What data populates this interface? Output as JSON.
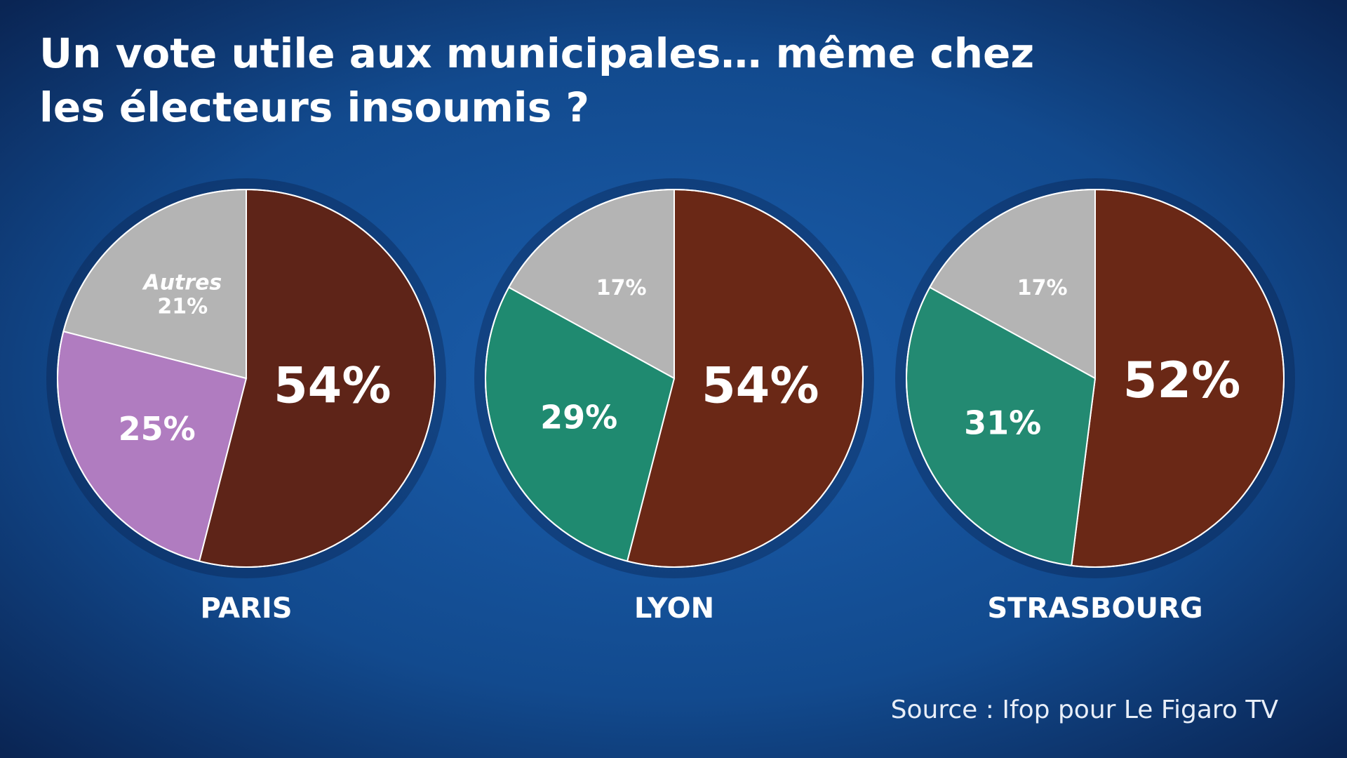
{
  "title": [
    "Un vote utile aux municipales… même chez",
    "les électeurs insoumis ?"
  ],
  "source": "Source : Ifop pour Le Figaro TV",
  "chart_data": [
    {
      "type": "pie",
      "title": "PARIS",
      "categories": [
        null,
        null,
        "Autres"
      ],
      "values": [
        54,
        25,
        21
      ],
      "value_labels": [
        "54%",
        "25%",
        "21%"
      ],
      "colors": [
        "#5e2418",
        "#b07cc0",
        "#b4b4b4"
      ]
    },
    {
      "type": "pie",
      "title": "LYON",
      "categories": [
        null,
        null,
        null
      ],
      "values": [
        54,
        29,
        17
      ],
      "value_labels": [
        "54%",
        "29%",
        "17%"
      ],
      "colors": [
        "#6a2816",
        "#1f8a70",
        "#b4b4b4"
      ]
    },
    {
      "type": "pie",
      "title": "STRASBOURG",
      "categories": [
        null,
        null,
        null
      ],
      "values": [
        52,
        31,
        17
      ],
      "value_labels": [
        "52%",
        "31%",
        "17%"
      ],
      "colors": [
        "#6a2816",
        "#238a72",
        "#b4b4b4"
      ]
    }
  ]
}
